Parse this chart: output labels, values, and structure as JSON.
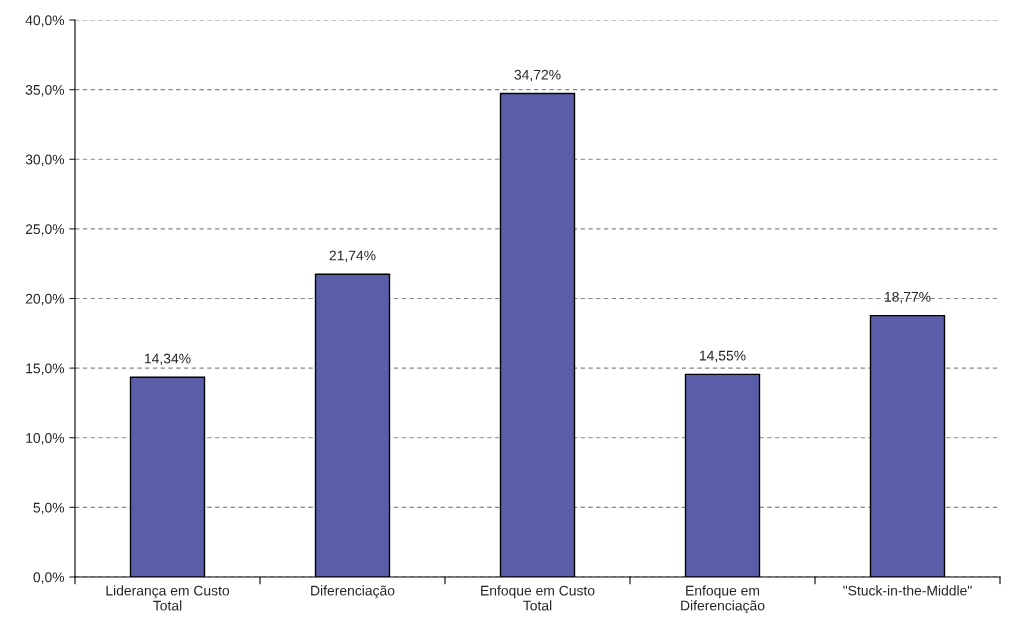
{
  "chart_data": {
    "type": "bar",
    "categories": [
      "Liderança em Custo\nTotal",
      "Diferenciação",
      "Enfoque em Custo\nTotal",
      "Enfoque em\nDiferenciação",
      "\"Stuck-in-the-Middle\""
    ],
    "values": [
      14.34,
      21.74,
      34.72,
      14.55,
      18.77
    ],
    "value_labels": [
      "14,34%",
      "21,74%",
      "34,72%",
      "14,55%",
      "18,77%"
    ],
    "color": "#5a5ea8",
    "ylim": [
      0,
      40
    ],
    "yticks": [
      {
        "value": 0,
        "label": "0,0%"
      },
      {
        "value": 5,
        "label": "5,0%"
      },
      {
        "value": 10,
        "label": "10,0%"
      },
      {
        "value": 15,
        "label": "15,0%"
      },
      {
        "value": 20,
        "label": "20,0%"
      },
      {
        "value": 25,
        "label": "25,0%"
      },
      {
        "value": 30,
        "label": "30,0%"
      },
      {
        "value": 35,
        "label": "35,0%"
      },
      {
        "value": 40,
        "label": "40,0%"
      }
    ],
    "grid": "y",
    "line_style": "dashed"
  }
}
